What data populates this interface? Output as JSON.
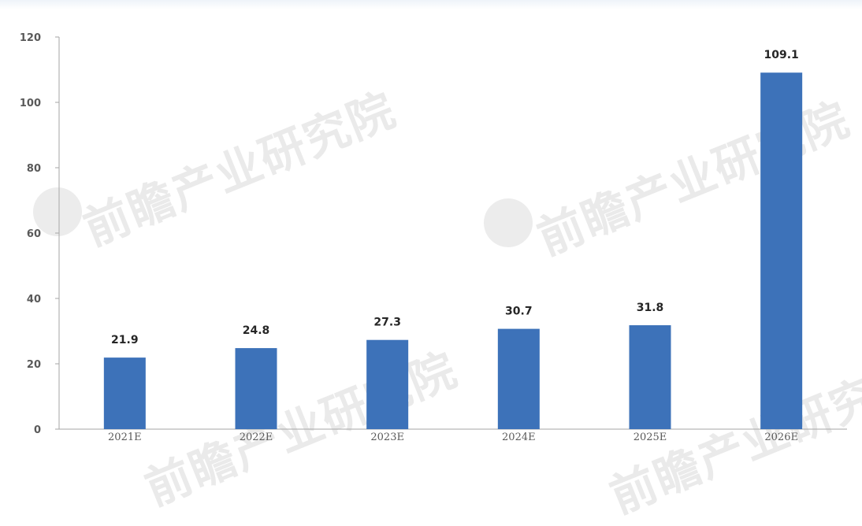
{
  "chart_data": {
    "type": "bar",
    "categories": [
      "2021E",
      "2022E",
      "2023E",
      "2024E",
      "2025E",
      "2026E"
    ],
    "values": [
      21.9,
      24.8,
      27.3,
      30.7,
      31.8,
      109.1
    ],
    "data_labels": [
      "21.9",
      "24.8",
      "27.3",
      "30.7",
      "31.8",
      "109.1"
    ],
    "title": "",
    "xlabel": "",
    "ylabel": "",
    "ylim": [
      0,
      120
    ],
    "yticks": [
      0,
      20,
      40,
      60,
      80,
      100,
      120
    ],
    "grid": false,
    "bar_color": "#3d72b9"
  },
  "watermark": {
    "text": "前瞻产业研究院"
  }
}
